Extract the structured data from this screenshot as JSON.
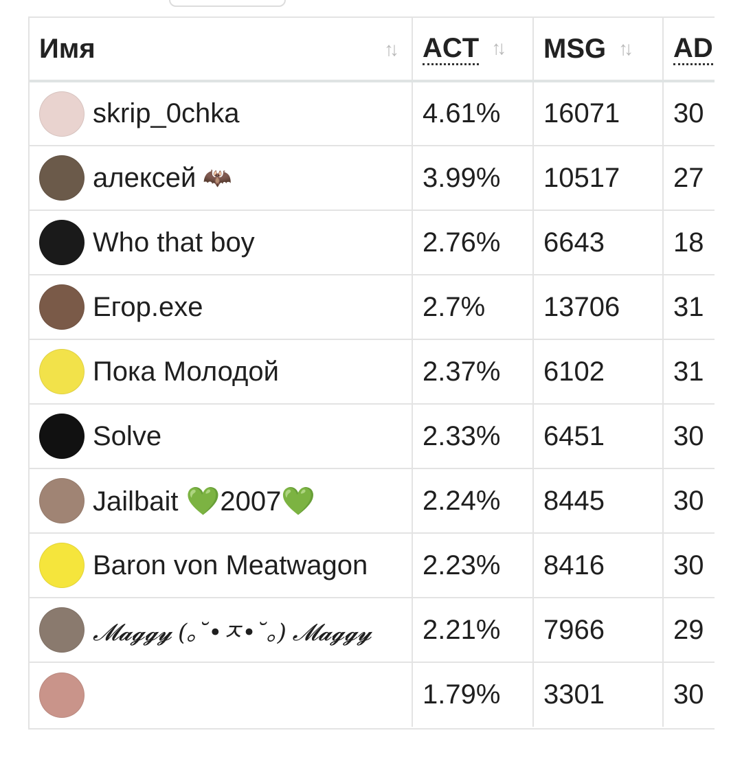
{
  "table": {
    "headers": {
      "name": "Имя",
      "act": "ACT",
      "msg": "MSG",
      "ad": "AD"
    },
    "rows": [
      {
        "name": "skrip_0chka",
        "act": "4.61%",
        "msg": "16071",
        "ad": "30",
        "avatar_color": "#e9d3cf"
      },
      {
        "name": "алексей",
        "emoji": "🦇",
        "act": "3.99%",
        "msg": "10517",
        "ad": "27",
        "avatar_color": "#6b5a4a"
      },
      {
        "name": "Who that boy",
        "act": "2.76%",
        "msg": "6643",
        "ad": "18",
        "avatar_color": "#1a1a1a"
      },
      {
        "name": "Егор.exe",
        "act": "2.7%",
        "msg": "13706",
        "ad": "31",
        "avatar_color": "#7a5a48"
      },
      {
        "name": "Пока Молодой",
        "act": "2.37%",
        "msg": "6102",
        "ad": "31",
        "avatar_color": "#f2e24a"
      },
      {
        "name": "Solve",
        "act": "2.33%",
        "msg": "6451",
        "ad": "30",
        "avatar_color": "#111111"
      },
      {
        "name": "Jailbait 💚2007💚",
        "act": "2.24%",
        "msg": "8445",
        "ad": "30",
        "avatar_color": "#a08474"
      },
      {
        "name": "Baron von Meatwagon",
        "act": "2.23%",
        "msg": "8416",
        "ad": "30",
        "avatar_color": "#f5e53c"
      },
      {
        "name": "𝓜𝓪𝓰𝓰𝔂 (｡˘•ㅈ•˘｡) 𝓜𝓪𝓰𝓰𝔂",
        "act": "2.21%",
        "msg": "7966",
        "ad": "29",
        "avatar_color": "#8a7a6e"
      },
      {
        "name": "",
        "act": "1.79%",
        "msg": "3301",
        "ad": "30",
        "avatar_color": "#c9948a"
      }
    ]
  },
  "icons": {
    "sort": "sort-arrows-icon"
  }
}
